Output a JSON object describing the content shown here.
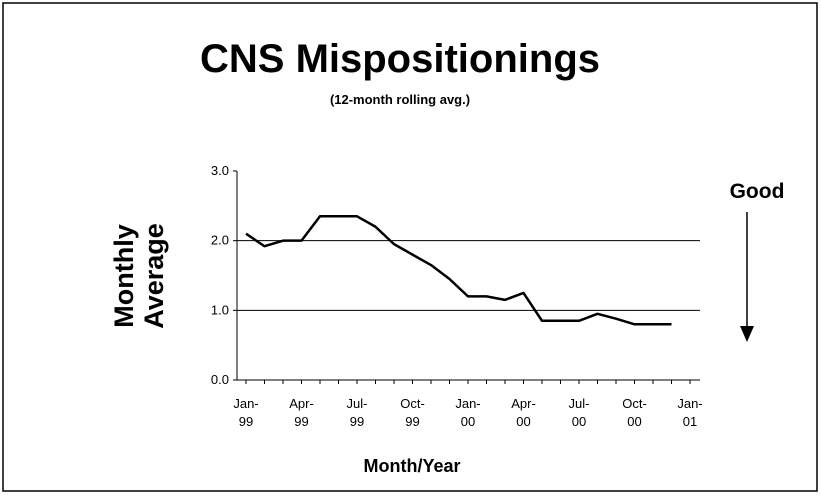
{
  "chart_data": {
    "type": "line",
    "title": "CNS Mispositionings",
    "subtitle": "(12-month rolling avg.)",
    "y_label": "Monthly\nAverage",
    "x_label": "Month/Year",
    "annotation": "Good",
    "categories": [
      "Jan-\n99",
      null,
      null,
      "Apr-\n99",
      null,
      null,
      "Jul-\n99",
      null,
      null,
      "Oct-\n99",
      null,
      null,
      "Jan-\n00",
      null,
      null,
      "Apr-\n00",
      null,
      null,
      "Jul-\n00",
      null,
      null,
      "Oct-\n00",
      null,
      null,
      "Jan-\n01"
    ],
    "series": [
      {
        "name": "CNS Mispositionings",
        "color": "#000000",
        "values": [
          2.1,
          1.92,
          2.0,
          2.0,
          2.35,
          2.35,
          2.35,
          2.2,
          1.95,
          1.8,
          1.65,
          1.45,
          1.2,
          1.2,
          1.15,
          1.25,
          0.85,
          0.85,
          0.85,
          0.95,
          0.88,
          0.8,
          0.8,
          0.8,
          null
        ]
      }
    ],
    "ylim": [
      0,
      3
    ],
    "yticks": [
      {
        "value": 0,
        "label": "0.0"
      },
      {
        "value": 1,
        "label": "1.0"
      },
      {
        "value": 2,
        "label": "2.0"
      },
      {
        "value": 3,
        "label": "3.0"
      }
    ],
    "grid": true
  }
}
